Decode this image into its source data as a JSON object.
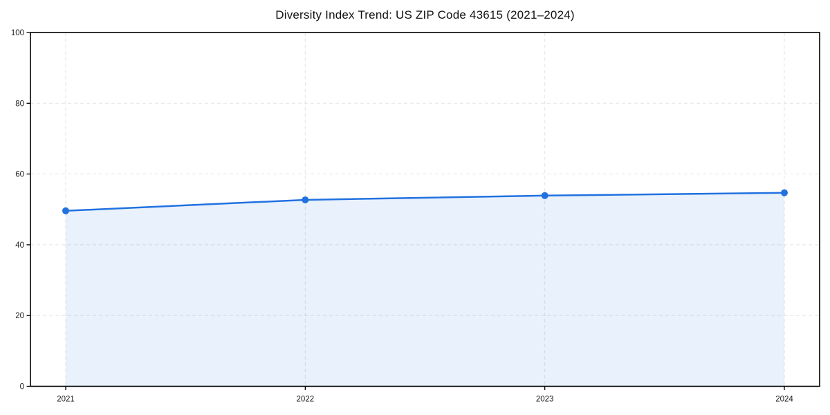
{
  "title": "Diversity Index Trend: US ZIP Code 43615 (2021–2024)",
  "chart_data": {
    "type": "line",
    "title": "Diversity Index Trend: US ZIP Code 43615 (2021–2024)",
    "x": [
      "2021",
      "2022",
      "2023",
      "2024"
    ],
    "values": [
      49.6,
      52.7,
      53.9,
      54.7
    ],
    "series_name": "Diversity Index",
    "xlabel": "",
    "ylabel": "",
    "ylim": [
      0,
      100
    ],
    "yticks": [
      0,
      20,
      40,
      60,
      80,
      100
    ],
    "grid": true,
    "grid_style": "dashed",
    "legend": "none",
    "area_fill": true,
    "colors": {
      "line": "#2171e0",
      "marker": "#2171e0",
      "fill": "rgba(33, 113, 224, 0.10)",
      "grid": "#e3e3e3",
      "spine": "#000000",
      "tick_text": "#1a1a1a"
    },
    "marker_radius": 5,
    "line_width": 2.5
  }
}
